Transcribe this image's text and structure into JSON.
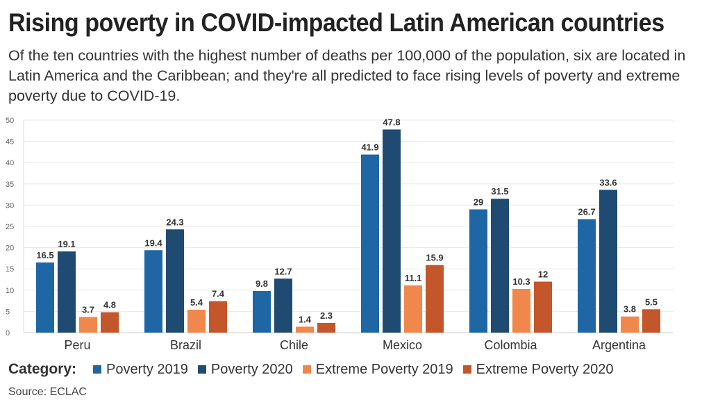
{
  "title": "Rising poverty in COVID-impacted Latin American countries",
  "subtitle": "Of the ten countries with the highest number of deaths per 100,000 of the population, six are located in Latin America and the Caribbean; and they're all predicted to face rising levels of poverty and extreme poverty due to COVID-19.",
  "legend_title": "Category:",
  "source": "Source: ECLAC",
  "chart_data": {
    "type": "bar",
    "categories": [
      "Peru",
      "Brazil",
      "Chile",
      "Mexico",
      "Colombia",
      "Argentina"
    ],
    "series": [
      {
        "name": "Poverty 2019",
        "color": "#1f66a5",
        "values": [
          16.5,
          19.4,
          9.8,
          41.9,
          29,
          26.7
        ]
      },
      {
        "name": "Poverty 2020",
        "color": "#1f4a72",
        "values": [
          19.1,
          24.3,
          12.7,
          47.8,
          31.5,
          33.6
        ]
      },
      {
        "name": "Extreme Poverty 2019",
        "color": "#f0884d",
        "values": [
          3.7,
          5.4,
          1.4,
          11.1,
          10.3,
          3.8
        ]
      },
      {
        "name": "Extreme Poverty 2020",
        "color": "#c3562a",
        "values": [
          4.8,
          7.4,
          2.3,
          15.9,
          12,
          5.5
        ]
      }
    ],
    "y_ticks": [
      0,
      5,
      10,
      15,
      20,
      25,
      30,
      35,
      40,
      45,
      50
    ],
    "ylim": [
      0,
      50
    ],
    "grid": true,
    "legend_position": "bottom-left"
  }
}
